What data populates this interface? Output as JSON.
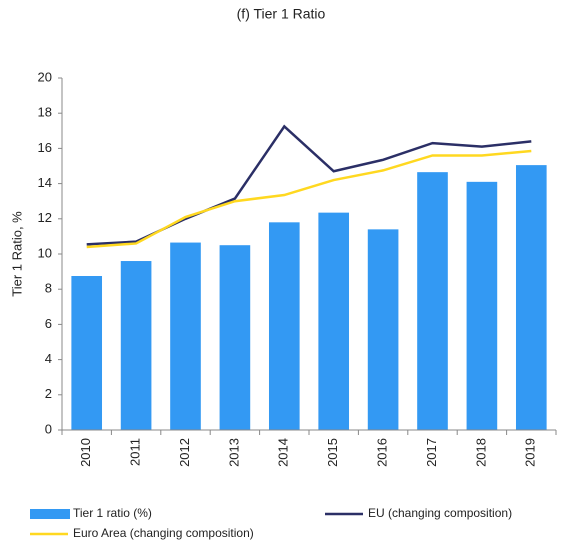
{
  "chart_data": {
    "type": "bar",
    "title": "(f) Tier 1 Ratio",
    "y_label": "Tier 1 Ratio, %",
    "categories": [
      "2010",
      "2011",
      "2012",
      "2013",
      "2014",
      "2015",
      "2016",
      "2017",
      "2018",
      "2019"
    ],
    "series": [
      {
        "name": "Tier 1 ratio (%)",
        "type": "bar",
        "color": "#3399f3",
        "values": [
          8.75,
          9.6,
          10.65,
          10.5,
          11.8,
          12.35,
          11.4,
          14.65,
          14.1,
          15.05
        ]
      },
      {
        "name": "EU (changing composition)",
        "type": "line",
        "color": "#2b2f66",
        "values": [
          10.55,
          10.7,
          12.0,
          13.15,
          17.25,
          14.7,
          15.35,
          16.3,
          16.1,
          16.4
        ]
      },
      {
        "name": "Euro Area (changing composition)",
        "type": "line",
        "color": "#ffd820",
        "values": [
          10.4,
          10.6,
          12.1,
          13.0,
          13.35,
          14.2,
          14.75,
          15.6,
          15.6,
          15.85
        ]
      }
    ],
    "ylim": [
      0,
      20
    ],
    "yticks": [
      0,
      2,
      4,
      6,
      8,
      10,
      12,
      14,
      16,
      18,
      20
    ]
  }
}
